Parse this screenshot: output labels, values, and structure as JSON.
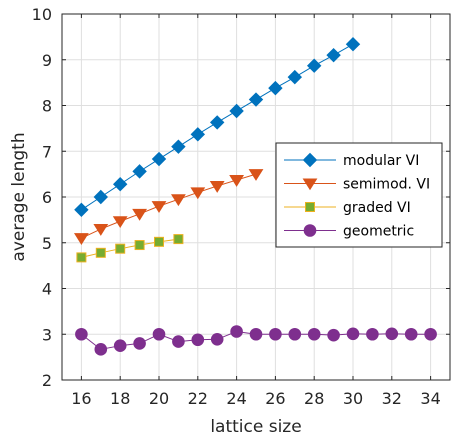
{
  "chart_data": {
    "type": "line",
    "xlabel": "lattice size",
    "ylabel": "average length",
    "xlim": [
      15,
      35
    ],
    "ylim": [
      2,
      10
    ],
    "xticks": [
      16,
      18,
      20,
      22,
      24,
      26,
      28,
      30,
      32,
      34
    ],
    "yticks": [
      2,
      3,
      4,
      5,
      6,
      7,
      8,
      9,
      10
    ],
    "grid": true,
    "legend_position": "right",
    "series": [
      {
        "name": "modular VI",
        "color": "#0072BD",
        "marker": "diamond",
        "x": [
          16,
          17,
          18,
          19,
          20,
          21,
          22,
          23,
          24,
          25,
          26,
          27,
          28,
          29,
          30
        ],
        "y": [
          5.72,
          6.0,
          6.28,
          6.56,
          6.83,
          7.1,
          7.37,
          7.63,
          7.88,
          8.13,
          8.38,
          8.62,
          8.87,
          9.1,
          9.34
        ]
      },
      {
        "name": "semimod. VI",
        "color": "#D95319",
        "marker": "triangle-down",
        "x": [
          16,
          17,
          18,
          19,
          20,
          21,
          22,
          23,
          24,
          25
        ],
        "y": [
          5.1,
          5.3,
          5.47,
          5.63,
          5.8,
          5.95,
          6.1,
          6.24,
          6.37,
          6.5
        ]
      },
      {
        "name": "graded VI",
        "color": "#EDB120",
        "fill": "#77AC30",
        "marker": "square",
        "x": [
          16,
          17,
          18,
          19,
          20,
          21
        ],
        "y": [
          4.68,
          4.78,
          4.87,
          4.95,
          5.02,
          5.08
        ]
      },
      {
        "name": "geometric",
        "color": "#7E2F8E",
        "marker": "circle",
        "x": [
          16,
          17,
          18,
          19,
          20,
          21,
          22,
          23,
          24,
          25,
          26,
          27,
          28,
          29,
          30,
          31,
          32,
          33,
          34
        ],
        "y": [
          3.0,
          2.67,
          2.75,
          2.8,
          3.0,
          2.84,
          2.88,
          2.89,
          3.06,
          3.0,
          3.0,
          3.0,
          3.0,
          2.98,
          3.01,
          3.0,
          3.01,
          3.0,
          3.0
        ]
      }
    ]
  }
}
